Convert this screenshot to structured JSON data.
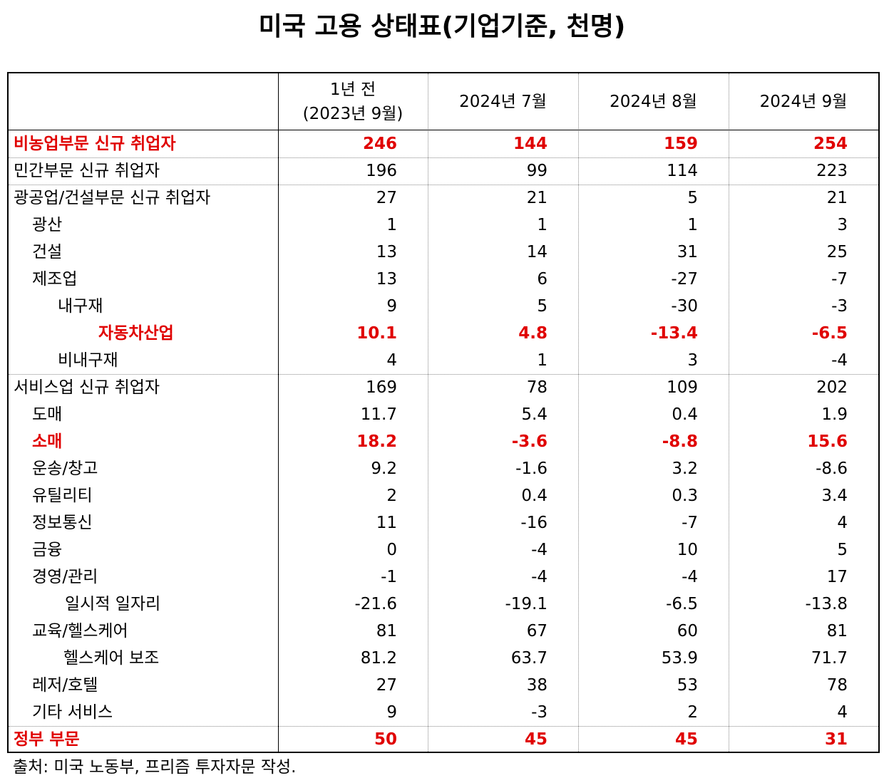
{
  "title": "미국 고용 상태표(기업기준, 천명)",
  "table": {
    "columns": [
      [
        "1년 전",
        "(2023년 9월)"
      ],
      [
        "2024년 7월"
      ],
      [
        "2024년 8월"
      ],
      [
        "2024년 9월"
      ]
    ],
    "rows": [
      {
        "label": "비농업부문 신규 취업자",
        "values": [
          "246",
          "144",
          "159",
          "254"
        ]
      },
      {
        "label": "민간부문 신규 취업자",
        "values": [
          "196",
          "99",
          "114",
          "223"
        ]
      },
      {
        "label": "광공업/건설부문 신규 취업자",
        "values": [
          "27",
          "21",
          "5",
          "21"
        ]
      },
      {
        "label": "광산",
        "values": [
          "1",
          "1",
          "1",
          "3"
        ]
      },
      {
        "label": "건설",
        "values": [
          "13",
          "14",
          "31",
          "25"
        ]
      },
      {
        "label": "제조업",
        "values": [
          "13",
          "6",
          "-27",
          "-7"
        ]
      },
      {
        "label": "내구재",
        "values": [
          "9",
          "5",
          "-30",
          "-3"
        ]
      },
      {
        "label": "자동차산업",
        "values": [
          "10.1",
          "4.8",
          "-13.4",
          "-6.5"
        ]
      },
      {
        "label": "비내구재",
        "values": [
          "4",
          "1",
          "3",
          "-4"
        ]
      },
      {
        "label": "서비스업 신규 취업자",
        "values": [
          "169",
          "78",
          "109",
          "202"
        ]
      },
      {
        "label": "도매",
        "values": [
          "11.7",
          "5.4",
          "0.4",
          "1.9"
        ]
      },
      {
        "label": "소매",
        "values": [
          "18.2",
          "-3.6",
          "-8.8",
          "15.6"
        ]
      },
      {
        "label": "운송/창고",
        "values": [
          "9.2",
          "-1.6",
          "3.2",
          "-8.6"
        ]
      },
      {
        "label": "유틸리티",
        "values": [
          "2",
          "0.4",
          "0.3",
          "3.4"
        ]
      },
      {
        "label": "정보통신",
        "values": [
          "11",
          "-16",
          "-7",
          "4"
        ]
      },
      {
        "label": "금융",
        "values": [
          "0",
          "-4",
          "10",
          "5"
        ]
      },
      {
        "label": "경영/관리",
        "values": [
          "-1",
          "-4",
          "-4",
          "17"
        ]
      },
      {
        "label": "일시적 일자리",
        "values": [
          "-21.6",
          "-19.1",
          "-6.5",
          "-13.8"
        ]
      },
      {
        "label": "교육/헬스케어",
        "values": [
          "81",
          "67",
          "60",
          "81"
        ]
      },
      {
        "label": "헬스케어 보조",
        "values": [
          "81.2",
          "63.7",
          "53.9",
          "71.7"
        ]
      },
      {
        "label": "레저/호텔",
        "values": [
          "27",
          "38",
          "53",
          "78"
        ]
      },
      {
        "label": "기타 서비스",
        "values": [
          "9",
          "-3",
          "2",
          "4"
        ]
      },
      {
        "label": "정부 부문",
        "values": [
          "50",
          "45",
          "45",
          "31"
        ]
      }
    ]
  },
  "footer": "출처: 미국 노동부, 프리즘 투자자문 작성."
}
